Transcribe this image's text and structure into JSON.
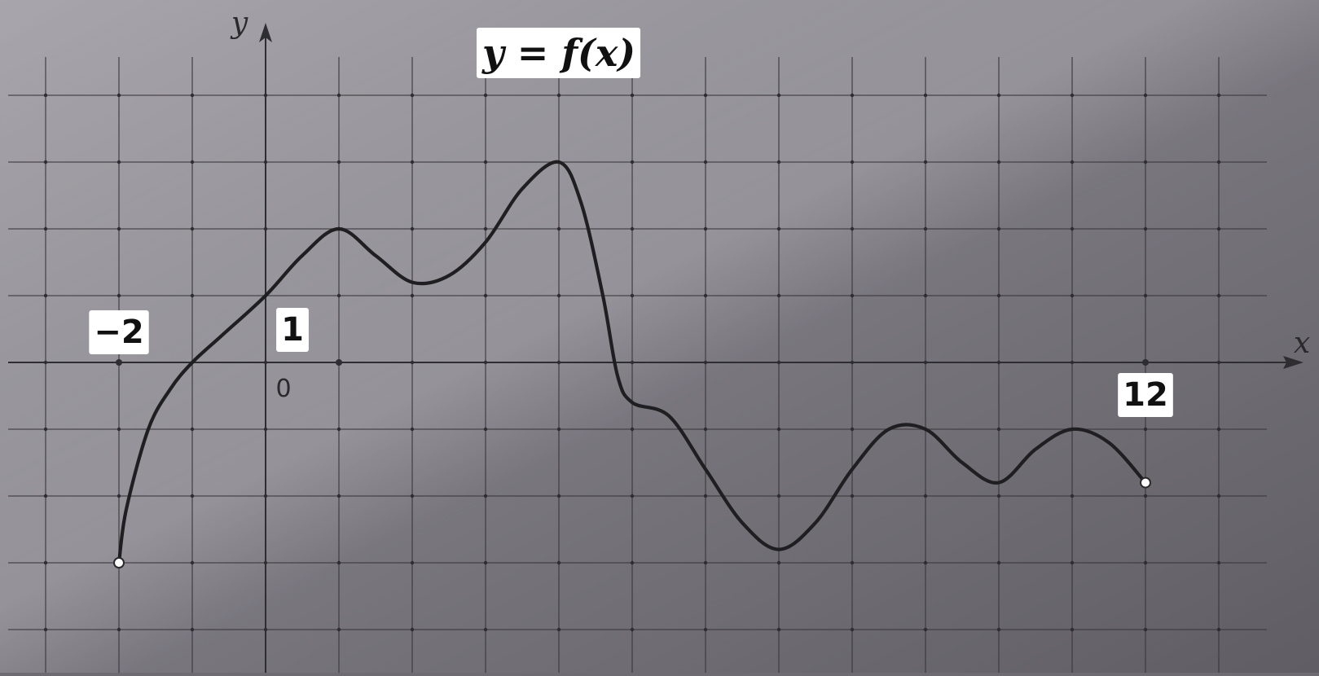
{
  "chart_data": {
    "type": "line",
    "title": "y = f(x)",
    "xlabel": "x",
    "ylabel": "y",
    "origin_label": "0",
    "tick_labels": [
      {
        "x": -2,
        "text": "−2"
      },
      {
        "x": 1,
        "text": "1"
      },
      {
        "x": 12,
        "text": "12"
      }
    ],
    "xlim": [
      -3,
      13
    ],
    "ylim": [
      -4,
      4
    ],
    "grid": true,
    "domain": [
      -2,
      12
    ],
    "endpoints": [
      {
        "x": -2,
        "y": -3,
        "style": "open"
      },
      {
        "x": 12,
        "y": -1.8,
        "style": "open"
      }
    ],
    "series": [
      {
        "points": [
          [
            -2,
            -3
          ],
          [
            -1.9,
            -2.2
          ],
          [
            -1.6,
            -1.0
          ],
          [
            -1.3,
            -0.4
          ],
          [
            -1,
            0
          ],
          [
            -0.6,
            0.4
          ],
          [
            0,
            1
          ],
          [
            0.5,
            1.6
          ],
          [
            1,
            2
          ],
          [
            1.5,
            1.6
          ],
          [
            2,
            1.2
          ],
          [
            2.5,
            1.3
          ],
          [
            3,
            1.8
          ],
          [
            3.5,
            2.6
          ],
          [
            4,
            3
          ],
          [
            4.3,
            2.4
          ],
          [
            4.6,
            1.0
          ],
          [
            4.8,
            -0.2
          ],
          [
            5,
            -0.6
          ],
          [
            5.5,
            -0.8
          ],
          [
            6,
            -1.6
          ],
          [
            6.5,
            -2.4
          ],
          [
            7,
            -2.8
          ],
          [
            7.5,
            -2.4
          ],
          [
            8,
            -1.6
          ],
          [
            8.5,
            -1.0
          ],
          [
            9,
            -1.0
          ],
          [
            9.5,
            -1.5
          ],
          [
            10,
            -1.8
          ],
          [
            10.5,
            -1.3
          ],
          [
            11,
            -1.0
          ],
          [
            11.5,
            -1.2
          ],
          [
            12,
            -1.8
          ]
        ]
      }
    ]
  }
}
